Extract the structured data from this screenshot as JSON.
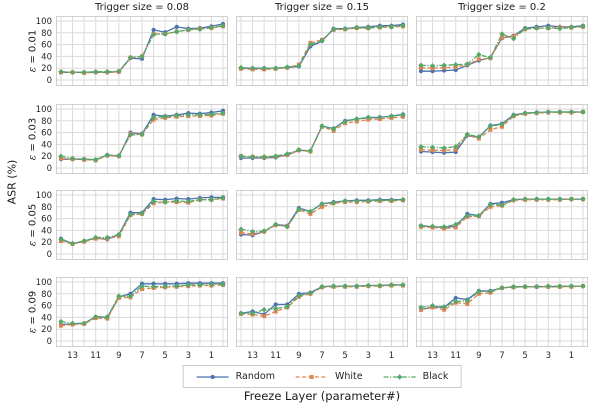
{
  "chart_data": {
    "type": "line",
    "xlabel": "Freeze Layer (parameter#)",
    "ylabel": "ASR (%)",
    "col_titles": [
      "Trigger size = 0.08",
      "Trigger size = 0.15",
      "Trigger size = 0.2"
    ],
    "row_labels": [
      "= 0.01",
      "= 0.03",
      "= 0.05",
      "= 0.09"
    ],
    "row_label_prefix": "ε ",
    "x": [
      14,
      13,
      12,
      11,
      10,
      9,
      8,
      7,
      6,
      5,
      4,
      3,
      2,
      1,
      0
    ],
    "x_ticks": [
      13,
      11,
      9,
      7,
      5,
      3,
      1
    ],
    "y_ticks": [
      0,
      20,
      40,
      60,
      80,
      100
    ],
    "ylim": [
      0,
      100
    ],
    "grid": true,
    "legend": {
      "position": "bottom",
      "entries": [
        {
          "name": "Random",
          "color": "#4c72b0",
          "dash": "solid",
          "marker": "circle"
        },
        {
          "name": "White",
          "color": "#dd8452",
          "dash": "dashed",
          "marker": "square"
        },
        {
          "name": "Black",
          "color": "#55a868",
          "dash": "dashdot",
          "marker": "diamond"
        }
      ]
    },
    "panels": [
      {
        "row": 0,
        "col": 0,
        "trigger_size": "0.08",
        "epsilon": "0.01",
        "series": [
          {
            "name": "Random",
            "values": [
              13,
              13,
              13,
              13,
              13,
              14,
              37,
              36,
              85,
              81,
              90,
              87,
              88,
              91,
              95
            ]
          },
          {
            "name": "White",
            "values": [
              13,
              13,
              12,
              13,
              13,
              14,
              38,
              40,
              78,
              78,
              82,
              85,
              87,
              88,
              91
            ]
          },
          {
            "name": "Black",
            "values": [
              14,
              13,
              13,
              14,
              14,
              15,
              38,
              40,
              77,
              78,
              82,
              85,
              86,
              89,
              92
            ]
          }
        ]
      },
      {
        "row": 0,
        "col": 1,
        "trigger_size": "0.15",
        "epsilon": "0.01",
        "series": [
          {
            "name": "Random",
            "values": [
              20,
              20,
              20,
              20,
              21,
              23,
              57,
              66,
              87,
              87,
              89,
              90,
              92,
              92,
              94
            ]
          },
          {
            "name": "White",
            "values": [
              19,
              18,
              18,
              19,
              21,
              26,
              63,
              68,
              85,
              86,
              88,
              88,
              89,
              90,
              91
            ]
          },
          {
            "name": "Black",
            "values": [
              21,
              20,
              20,
              20,
              22,
              24,
              60,
              67,
              86,
              87,
              89,
              88,
              90,
              90,
              92
            ]
          }
        ]
      },
      {
        "row": 0,
        "col": 2,
        "trigger_size": "0.2",
        "epsilon": "0.01",
        "series": [
          {
            "name": "Random",
            "values": [
              15,
              15,
              16,
              17,
              25,
              33,
              38,
              71,
              75,
              88,
              90,
              92,
              90,
              90,
              92
            ]
          },
          {
            "name": "White",
            "values": [
              21,
              20,
              21,
              22,
              26,
              35,
              37,
              72,
              74,
              86,
              88,
              88,
              89,
              89,
              90
            ]
          },
          {
            "name": "Black",
            "values": [
              25,
              24,
              25,
              26,
              27,
              43,
              38,
              78,
              70,
              87,
              88,
              88,
              87,
              89,
              91
            ]
          }
        ]
      },
      {
        "row": 1,
        "col": 0,
        "trigger_size": "0.08",
        "epsilon": "0.03",
        "series": [
          {
            "name": "Random",
            "values": [
              15,
              15,
              15,
              14,
              22,
              20,
              60,
              58,
              90,
              88,
              90,
              93,
              92,
              94,
              97
            ]
          },
          {
            "name": "White",
            "values": [
              16,
              15,
              14,
              13,
              21,
              20,
              58,
              57,
              82,
              85,
              87,
              88,
              88,
              89,
              92
            ]
          },
          {
            "name": "Black",
            "values": [
              20,
              16,
              15,
              14,
              22,
              21,
              56,
              57,
              86,
              87,
              89,
              90,
              90,
              91,
              93
            ]
          }
        ]
      },
      {
        "row": 1,
        "col": 1,
        "trigger_size": "0.15",
        "epsilon": "0.03",
        "series": [
          {
            "name": "Random",
            "values": [
              17,
              17,
              17,
              18,
              22,
              30,
              29,
              71,
              67,
              80,
              83,
              85,
              86,
              88,
              91
            ]
          },
          {
            "name": "White",
            "values": [
              20,
              19,
              18,
              19,
              22,
              30,
              28,
              70,
              63,
              76,
              79,
              82,
              83,
              85,
              87
            ]
          },
          {
            "name": "Black",
            "values": [
              20,
              19,
              19,
              20,
              24,
              31,
              29,
              71,
              66,
              79,
              83,
              86,
              86,
              88,
              90
            ]
          }
        ]
      },
      {
        "row": 1,
        "col": 2,
        "trigger_size": "0.2",
        "epsilon": "0.03",
        "series": [
          {
            "name": "Random",
            "values": [
              28,
              27,
              26,
              27,
              55,
              52,
              72,
              75,
              90,
              93,
              94,
              95,
              95,
              95,
              95
            ]
          },
          {
            "name": "White",
            "values": [
              31,
              30,
              30,
              31,
              56,
              50,
              65,
              70,
              88,
              92,
              93,
              94,
              94,
              94,
              95
            ]
          },
          {
            "name": "Black",
            "values": [
              36,
              35,
              34,
              36,
              57,
              53,
              71,
              74,
              89,
              93,
              94,
              95,
              95,
              95,
              95
            ]
          }
        ]
      },
      {
        "row": 2,
        "col": 0,
        "trigger_size": "0.08",
        "epsilon": "0.05",
        "series": [
          {
            "name": "Random",
            "values": [
              26,
              17,
              22,
              27,
              25,
              33,
              70,
              70,
              93,
              92,
              94,
              93,
              95,
              96,
              96
            ]
          },
          {
            "name": "White",
            "values": [
              22,
              17,
              21,
              26,
              26,
              30,
              66,
              68,
              86,
              88,
              88,
              87,
              92,
              92,
              94
            ]
          },
          {
            "name": "Black",
            "values": [
              25,
              18,
              22,
              28,
              28,
              33,
              67,
              69,
              89,
              88,
              90,
              89,
              92,
              92,
              95
            ]
          }
        ]
      },
      {
        "row": 2,
        "col": 1,
        "trigger_size": "0.15",
        "epsilon": "0.05",
        "series": [
          {
            "name": "Random",
            "values": [
              33,
              32,
              38,
              50,
              48,
              78,
              72,
              85,
              88,
              90,
              91,
              91,
              92,
              92,
              92
            ]
          },
          {
            "name": "White",
            "values": [
              36,
              34,
              38,
              49,
              47,
              75,
              68,
              80,
              86,
              88,
              88,
              89,
              90,
              90,
              91
            ]
          },
          {
            "name": "Black",
            "values": [
              42,
              38,
              39,
              50,
              46,
              76,
              72,
              85,
              87,
              90,
              90,
              90,
              91,
              91,
              92
            ]
          }
        ]
      },
      {
        "row": 2,
        "col": 2,
        "trigger_size": "0.2",
        "epsilon": "0.05",
        "series": [
          {
            "name": "Random",
            "values": [
              48,
              46,
              45,
              47,
              68,
              65,
              85,
              87,
              92,
              93,
              93,
              93,
              93,
              93,
              93
            ]
          },
          {
            "name": "White",
            "values": [
              46,
              45,
              43,
              45,
              63,
              64,
              80,
              82,
              91,
              92,
              92,
              92,
              92,
              93,
              93
            ]
          },
          {
            "name": "Black",
            "values": [
              48,
              47,
              46,
              50,
              65,
              65,
              84,
              83,
              92,
              93,
              93,
              93,
              93,
              93,
              93
            ]
          }
        ]
      },
      {
        "row": 3,
        "col": 0,
        "trigger_size": "0.08",
        "epsilon": "0.09",
        "series": [
          {
            "name": "Random",
            "values": [
              28,
              29,
              30,
              41,
              40,
              75,
              80,
              97,
              97,
              97,
              97,
              98,
              98,
              98,
              98
            ]
          },
          {
            "name": "White",
            "values": [
              26,
              28,
              29,
              39,
              38,
              73,
              74,
              88,
              90,
              91,
              92,
              93,
              94,
              94,
              95
            ]
          },
          {
            "name": "Black",
            "values": [
              33,
              30,
              30,
              41,
              41,
              76,
              76,
              93,
              92,
              93,
              93,
              95,
              95,
              96,
              96
            ]
          }
        ]
      },
      {
        "row": 3,
        "col": 1,
        "trigger_size": "0.15",
        "epsilon": "0.09",
        "series": [
          {
            "name": "Random",
            "values": [
              47,
              50,
              45,
              62,
              62,
              80,
              82,
              92,
              93,
              93,
              93,
              94,
              94,
              95,
              95
            ]
          },
          {
            "name": "White",
            "values": [
              46,
              45,
              42,
              50,
              57,
              75,
              80,
              91,
              92,
              92,
              92,
              93,
              93,
              94,
              94
            ]
          },
          {
            "name": "Black",
            "values": [
              47,
              47,
              53,
              55,
              58,
              77,
              81,
              92,
              93,
              93,
              93,
              94,
              94,
              95,
              95
            ]
          }
        ]
      },
      {
        "row": 3,
        "col": 2,
        "trigger_size": "0.2",
        "epsilon": "0.09",
        "series": [
          {
            "name": "Random",
            "values": [
              53,
              58,
              57,
              73,
              70,
              85,
              85,
              90,
              92,
              92,
              92,
              92,
              92,
              93,
              93
            ]
          },
          {
            "name": "White",
            "values": [
              53,
              57,
              53,
              65,
              63,
              80,
              82,
              90,
              91,
              92,
              92,
              92,
              92,
              92,
              93
            ]
          },
          {
            "name": "Black",
            "values": [
              57,
              60,
              58,
              67,
              68,
              84,
              84,
              90,
              92,
              92,
              92,
              93,
              93,
              93,
              93
            ]
          }
        ]
      }
    ]
  }
}
